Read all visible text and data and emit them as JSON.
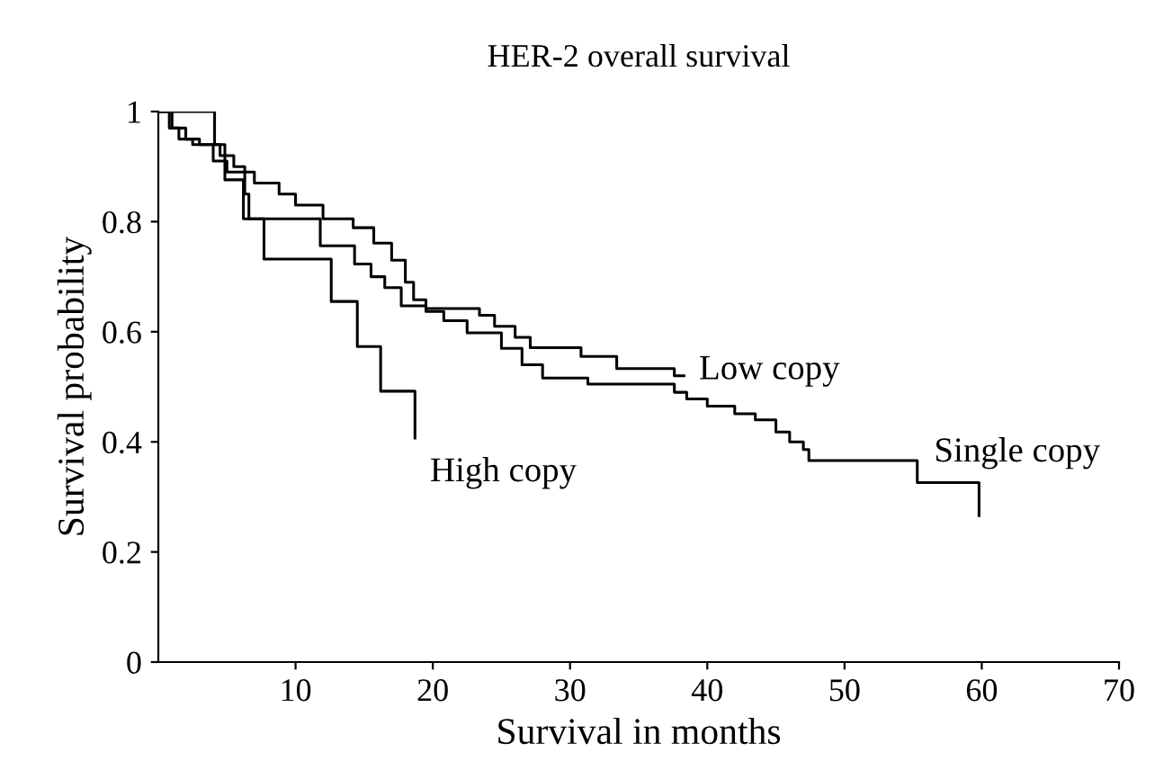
{
  "chart_data": {
    "type": "step",
    "title": "HER-2 overall survival",
    "xlabel": "Survival in months",
    "ylabel": "Survival probability",
    "xlim": [
      0,
      70
    ],
    "ylim": [
      0,
      1
    ],
    "xticks": [
      10,
      20,
      30,
      40,
      50,
      60,
      70
    ],
    "yticks": [
      0,
      0.2,
      0.4,
      0.6,
      0.8,
      1
    ],
    "grid": false,
    "legend": false,
    "series": [
      {
        "name": "High copy",
        "color": "#000000",
        "x": [
          0,
          4.1,
          4.85,
          6.2,
          7.7,
          12.6,
          14.5,
          16.2,
          18.7
        ],
        "values": [
          1,
          0.94,
          0.876,
          0.805,
          0.732,
          0.655,
          0.573,
          0.492,
          0.407
        ]
      },
      {
        "name": "Low copy",
        "color": "#000000",
        "x": [
          0,
          1,
          2,
          3,
          4,
          5,
          7,
          8.8,
          10,
          12,
          14.2,
          15.7,
          17,
          18,
          18.6,
          19.5,
          23.4,
          24.5,
          26,
          27.1,
          30.8,
          33.4,
          37.6,
          38.3
        ],
        "values": [
          1,
          0.97,
          0.95,
          0.94,
          0.91,
          0.89,
          0.87,
          0.85,
          0.83,
          0.805,
          0.789,
          0.761,
          0.73,
          0.69,
          0.658,
          0.642,
          0.63,
          0.61,
          0.59,
          0.571,
          0.555,
          0.533,
          0.52,
          0.52
        ]
      },
      {
        "name": "Single copy",
        "color": "#000000",
        "x": [
          0,
          0.8,
          1.5,
          2.5,
          4.5,
          5.5,
          6.3,
          6.6,
          11.8,
          14.3,
          15.5,
          16.5,
          17.7,
          19.5,
          20.8,
          22.5,
          25,
          26.5,
          28,
          31.3,
          37.6,
          38.5,
          40,
          42,
          43.5,
          45,
          46,
          47,
          47.4,
          55.3,
          59.8
        ],
        "values": [
          1,
          0.97,
          0.95,
          0.94,
          0.92,
          0.9,
          0.85,
          0.805,
          0.756,
          0.723,
          0.7,
          0.68,
          0.647,
          0.637,
          0.62,
          0.598,
          0.57,
          0.54,
          0.516,
          0.505,
          0.49,
          0.478,
          0.465,
          0.451,
          0.44,
          0.418,
          0.4,
          0.386,
          0.366,
          0.326,
          0.266
        ]
      }
    ]
  }
}
